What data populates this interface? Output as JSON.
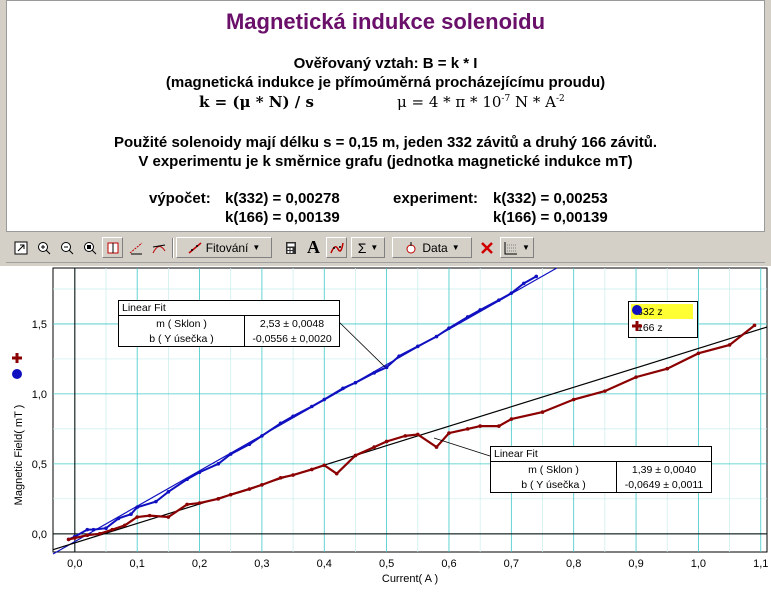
{
  "panel": {
    "title": "Magnetická indukce solenoidu",
    "line1": "Ověřovaný vztah: B = k * I",
    "line2": "(magnetická indukce je přímoúměrná procházejícímu proudu)",
    "formula_k": "k = (μ * N) / s",
    "formula_mu_base": "μ = 4 * π * 10",
    "formula_mu_exp1": "-7",
    "formula_mu_unit": " N * A",
    "formula_mu_exp2": "-2",
    "line4": "Použité solenoidy mají délku s = 0,15 m, jeden 332 závitů a druhý 166 závitů.",
    "line5": "V experimentu je k směrnice grafu (jednotka magnetické indukce mT)",
    "calc_label": "výpočet:",
    "calc_332": "k(332) = 0,00278",
    "calc_166": "k(166) = 0,00139",
    "exp_label": "experiment:",
    "exp_332": "k(332) = 0,00253",
    "exp_166": "k(166) = 0,00139"
  },
  "toolbar": {
    "fit_label": "Fitování",
    "font_label": "A",
    "sigma_label": "Σ",
    "data_label": "Data",
    "icons": [
      "window-icon",
      "zoom-in-icon",
      "zoom-out-icon",
      "autoscale-icon",
      "examine-icon",
      "interpolate-icon",
      "tangent-icon",
      "linear-fit-icon",
      "calculator-icon",
      "text-annotation-icon",
      "curve-fit-icon",
      "statistics-icon",
      "data-icon",
      "delete-icon",
      "graph-options-icon"
    ]
  },
  "fit_boxes": [
    {
      "header": "Linear Fit",
      "rows": [
        {
          "label": "m ( Sklon )",
          "value": "2,53 ± 0,0048"
        },
        {
          "label": "b ( Y úsečka )",
          "value": "-0,0556 ± 0,0020"
        }
      ]
    },
    {
      "header": "Linear Fit",
      "rows": [
        {
          "label": "m ( Sklon )",
          "value": "1,39 ± 0,0040"
        },
        {
          "label": "b ( Y úsečka )",
          "value": "-0,0649 ± 0,0011"
        }
      ]
    }
  ],
  "legend": [
    {
      "name": "332 z",
      "color": "#1010c0",
      "marker": "circle"
    },
    {
      "name": "166 z",
      "color": "#8b0000",
      "marker": "plus"
    }
  ],
  "chart_data": {
    "type": "scatter",
    "xlabel": "Current( A )",
    "ylabel": "Magnetic Field( mT )",
    "xlim": [
      -0.035,
      1.11
    ],
    "ylim": [
      -0.13,
      1.9
    ],
    "x_ticks": [
      "0,0",
      "0,1",
      "0,2",
      "0,3",
      "0,4",
      "0,5",
      "0,6",
      "0,7",
      "0,8",
      "0,9",
      "1,0",
      "1,1"
    ],
    "y_ticks": [
      "0,0",
      "0,5",
      "1,0",
      "1,5"
    ],
    "grid": true,
    "series": [
      {
        "name": "332 z",
        "color": "#1010c0",
        "x": [
          -0.01,
          0.0,
          0.02,
          0.03,
          0.05,
          0.07,
          0.09,
          0.1,
          0.13,
          0.15,
          0.18,
          0.2,
          0.23,
          0.25,
          0.28,
          0.3,
          0.33,
          0.35,
          0.38,
          0.4,
          0.43,
          0.45,
          0.48,
          0.5,
          0.52,
          0.55,
          0.58,
          0.6,
          0.63,
          0.65,
          0.68,
          0.7,
          0.72,
          0.74
        ],
        "y": [
          -0.04,
          -0.02,
          0.03,
          0.03,
          0.04,
          0.11,
          0.14,
          0.19,
          0.23,
          0.3,
          0.39,
          0.44,
          0.5,
          0.57,
          0.64,
          0.7,
          0.79,
          0.84,
          0.91,
          0.96,
          1.04,
          1.08,
          1.15,
          1.19,
          1.27,
          1.34,
          1.41,
          1.47,
          1.55,
          1.6,
          1.67,
          1.72,
          1.79,
          1.84
        ],
        "fit": {
          "m": 2.53,
          "b": -0.0556
        }
      },
      {
        "name": "166 z",
        "color": "#8b0000",
        "x": [
          -0.01,
          0.0,
          0.02,
          0.04,
          0.06,
          0.08,
          0.1,
          0.12,
          0.15,
          0.18,
          0.2,
          0.23,
          0.25,
          0.28,
          0.3,
          0.33,
          0.35,
          0.38,
          0.4,
          0.42,
          0.45,
          0.48,
          0.5,
          0.53,
          0.55,
          0.58,
          0.6,
          0.63,
          0.65,
          0.68,
          0.7,
          0.75,
          0.8,
          0.85,
          0.9,
          0.95,
          1.0,
          1.05,
          1.09
        ],
        "y": [
          -0.04,
          -0.03,
          -0.01,
          0.0,
          0.03,
          0.06,
          0.12,
          0.13,
          0.12,
          0.21,
          0.22,
          0.25,
          0.28,
          0.32,
          0.35,
          0.4,
          0.42,
          0.46,
          0.49,
          0.43,
          0.56,
          0.62,
          0.66,
          0.7,
          0.71,
          0.62,
          0.72,
          0.75,
          0.77,
          0.77,
          0.82,
          0.87,
          0.96,
          1.02,
          1.12,
          1.18,
          1.29,
          1.35,
          1.49
        ],
        "fit": {
          "m": 1.39,
          "b": -0.0649
        }
      }
    ]
  }
}
